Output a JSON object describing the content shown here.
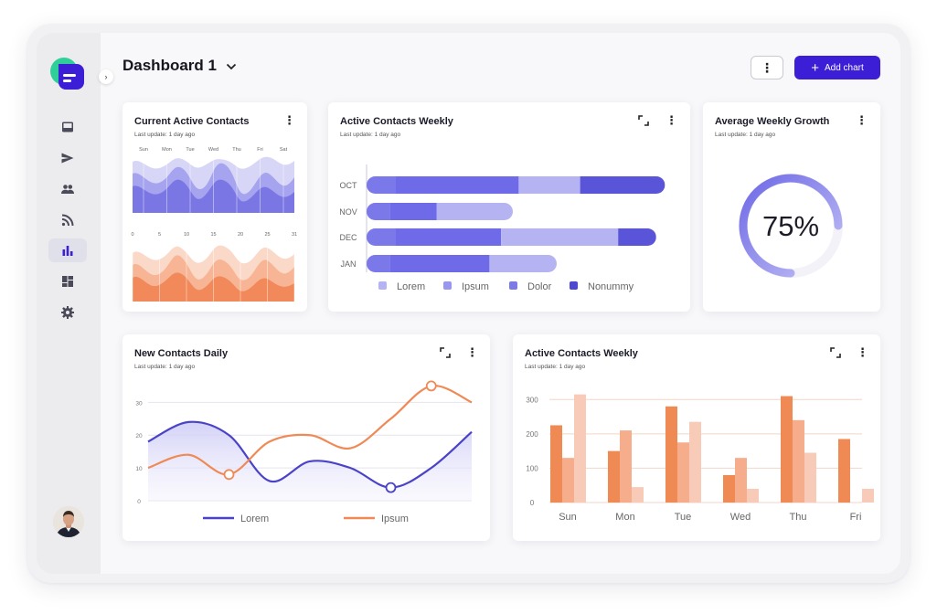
{
  "header": {
    "title": "Dashboard 1",
    "more_label": "⋮",
    "add_chart_label": "Add chart"
  },
  "sidebar": {
    "collapse_glyph": "›",
    "items": [
      {
        "icon": "inbox-icon"
      },
      {
        "icon": "send-icon"
      },
      {
        "icon": "people-icon"
      },
      {
        "icon": "rss-icon"
      },
      {
        "icon": "bar-chart-icon",
        "active": true
      },
      {
        "icon": "dashboard-icon"
      },
      {
        "icon": "gear-icon"
      }
    ]
  },
  "colors": {
    "accent": "#3b1ed6",
    "purple_dark": "#5249d8",
    "purple_mid": "#7070e8",
    "purple_light": "#b7b6f2",
    "orange": "#f0915f",
    "orange_mid": "#f5b08e",
    "orange_light": "#f6c9b6"
  },
  "cards": {
    "current_active_contacts": {
      "title": "Current Active Contacts",
      "subtitle": "Last update: 1 day ago",
      "top_labels": [
        "Sun",
        "Mon",
        "Tue",
        "Wed",
        "Thu",
        "Fri",
        "Sat"
      ],
      "bottom_labels": [
        "0",
        "5",
        "10",
        "15",
        "20",
        "25",
        "31"
      ]
    },
    "active_contacts_weekly_bar": {
      "title": "Active Contacts Weekly",
      "subtitle": "Last update: 1 day ago"
    },
    "average_weekly_growth": {
      "title": "Average Weekly Growth",
      "subtitle": "Last update: 1 day ago",
      "value_text": "75%",
      "value": 0.75
    },
    "new_contacts_daily": {
      "title": "New Contacts Daily",
      "subtitle": "Last update: 1 day ago"
    },
    "active_contacts_weekly_col": {
      "title": "Active Contacts Weekly",
      "subtitle": "Last update: 1 day ago"
    }
  },
  "chart_data": [
    {
      "type": "bar",
      "orientation": "horizontal",
      "stacked": true,
      "categories": [
        "OCT",
        "NOV",
        "DEC",
        "JAN"
      ],
      "series": [
        {
          "name": "Lorem",
          "color": "#7b78ea",
          "values": [
            10,
            8,
            10,
            8
          ]
        },
        {
          "name": "Ipsum",
          "color": "#6f6be8",
          "values": [
            42,
            16,
            36,
            34
          ]
        },
        {
          "name": "Dolor",
          "color": "#b5b3f2",
          "values": [
            21,
            26,
            40,
            23
          ]
        },
        {
          "name": "Nonummy",
          "color": "#5a55d8",
          "values": [
            29,
            0,
            13,
            0
          ]
        }
      ],
      "legend": [
        "Lorem",
        "Ipsum",
        "Dolor",
        "Nonummy"
      ],
      "legend_colors": [
        "#b5b3f2",
        "#9896ee",
        "#7d7ae8",
        "#4e47d2"
      ],
      "legend_position": "bottom"
    },
    {
      "type": "line",
      "smooth": true,
      "x": [
        0,
        1,
        2,
        3,
        4,
        5,
        6,
        7,
        8
      ],
      "series": [
        {
          "name": "Lorem",
          "color": "#4a43c8",
          "values": [
            18,
            24,
            20,
            6,
            12,
            10,
            4,
            10,
            21
          ]
        },
        {
          "name": "Ipsum",
          "color": "#ef8a56",
          "values": [
            10,
            14,
            8,
            18,
            20,
            16,
            25,
            35,
            30
          ]
        }
      ],
      "yticks": [
        "0",
        "10",
        "20",
        "30"
      ],
      "ylim": [
        0,
        34
      ],
      "grid": true,
      "legend_position": "bottom"
    },
    {
      "type": "bar",
      "grouped": true,
      "categories": [
        "Sun",
        "Mon",
        "Tue",
        "Wed",
        "Thu",
        "Fri"
      ],
      "series": [
        {
          "color": "#f08a55",
          "values": [
            225,
            150,
            280,
            80,
            310,
            185
          ]
        },
        {
          "color": "#f5ad8c",
          "values": [
            130,
            210,
            175,
            130,
            240,
            0
          ]
        },
        {
          "color": "#f7cbb8",
          "values": [
            315,
            45,
            235,
            40,
            145,
            40
          ]
        }
      ],
      "yticks": [
        "0",
        "100",
        "200",
        "300"
      ],
      "ylim": [
        0,
        330
      ],
      "grid": true
    }
  ]
}
